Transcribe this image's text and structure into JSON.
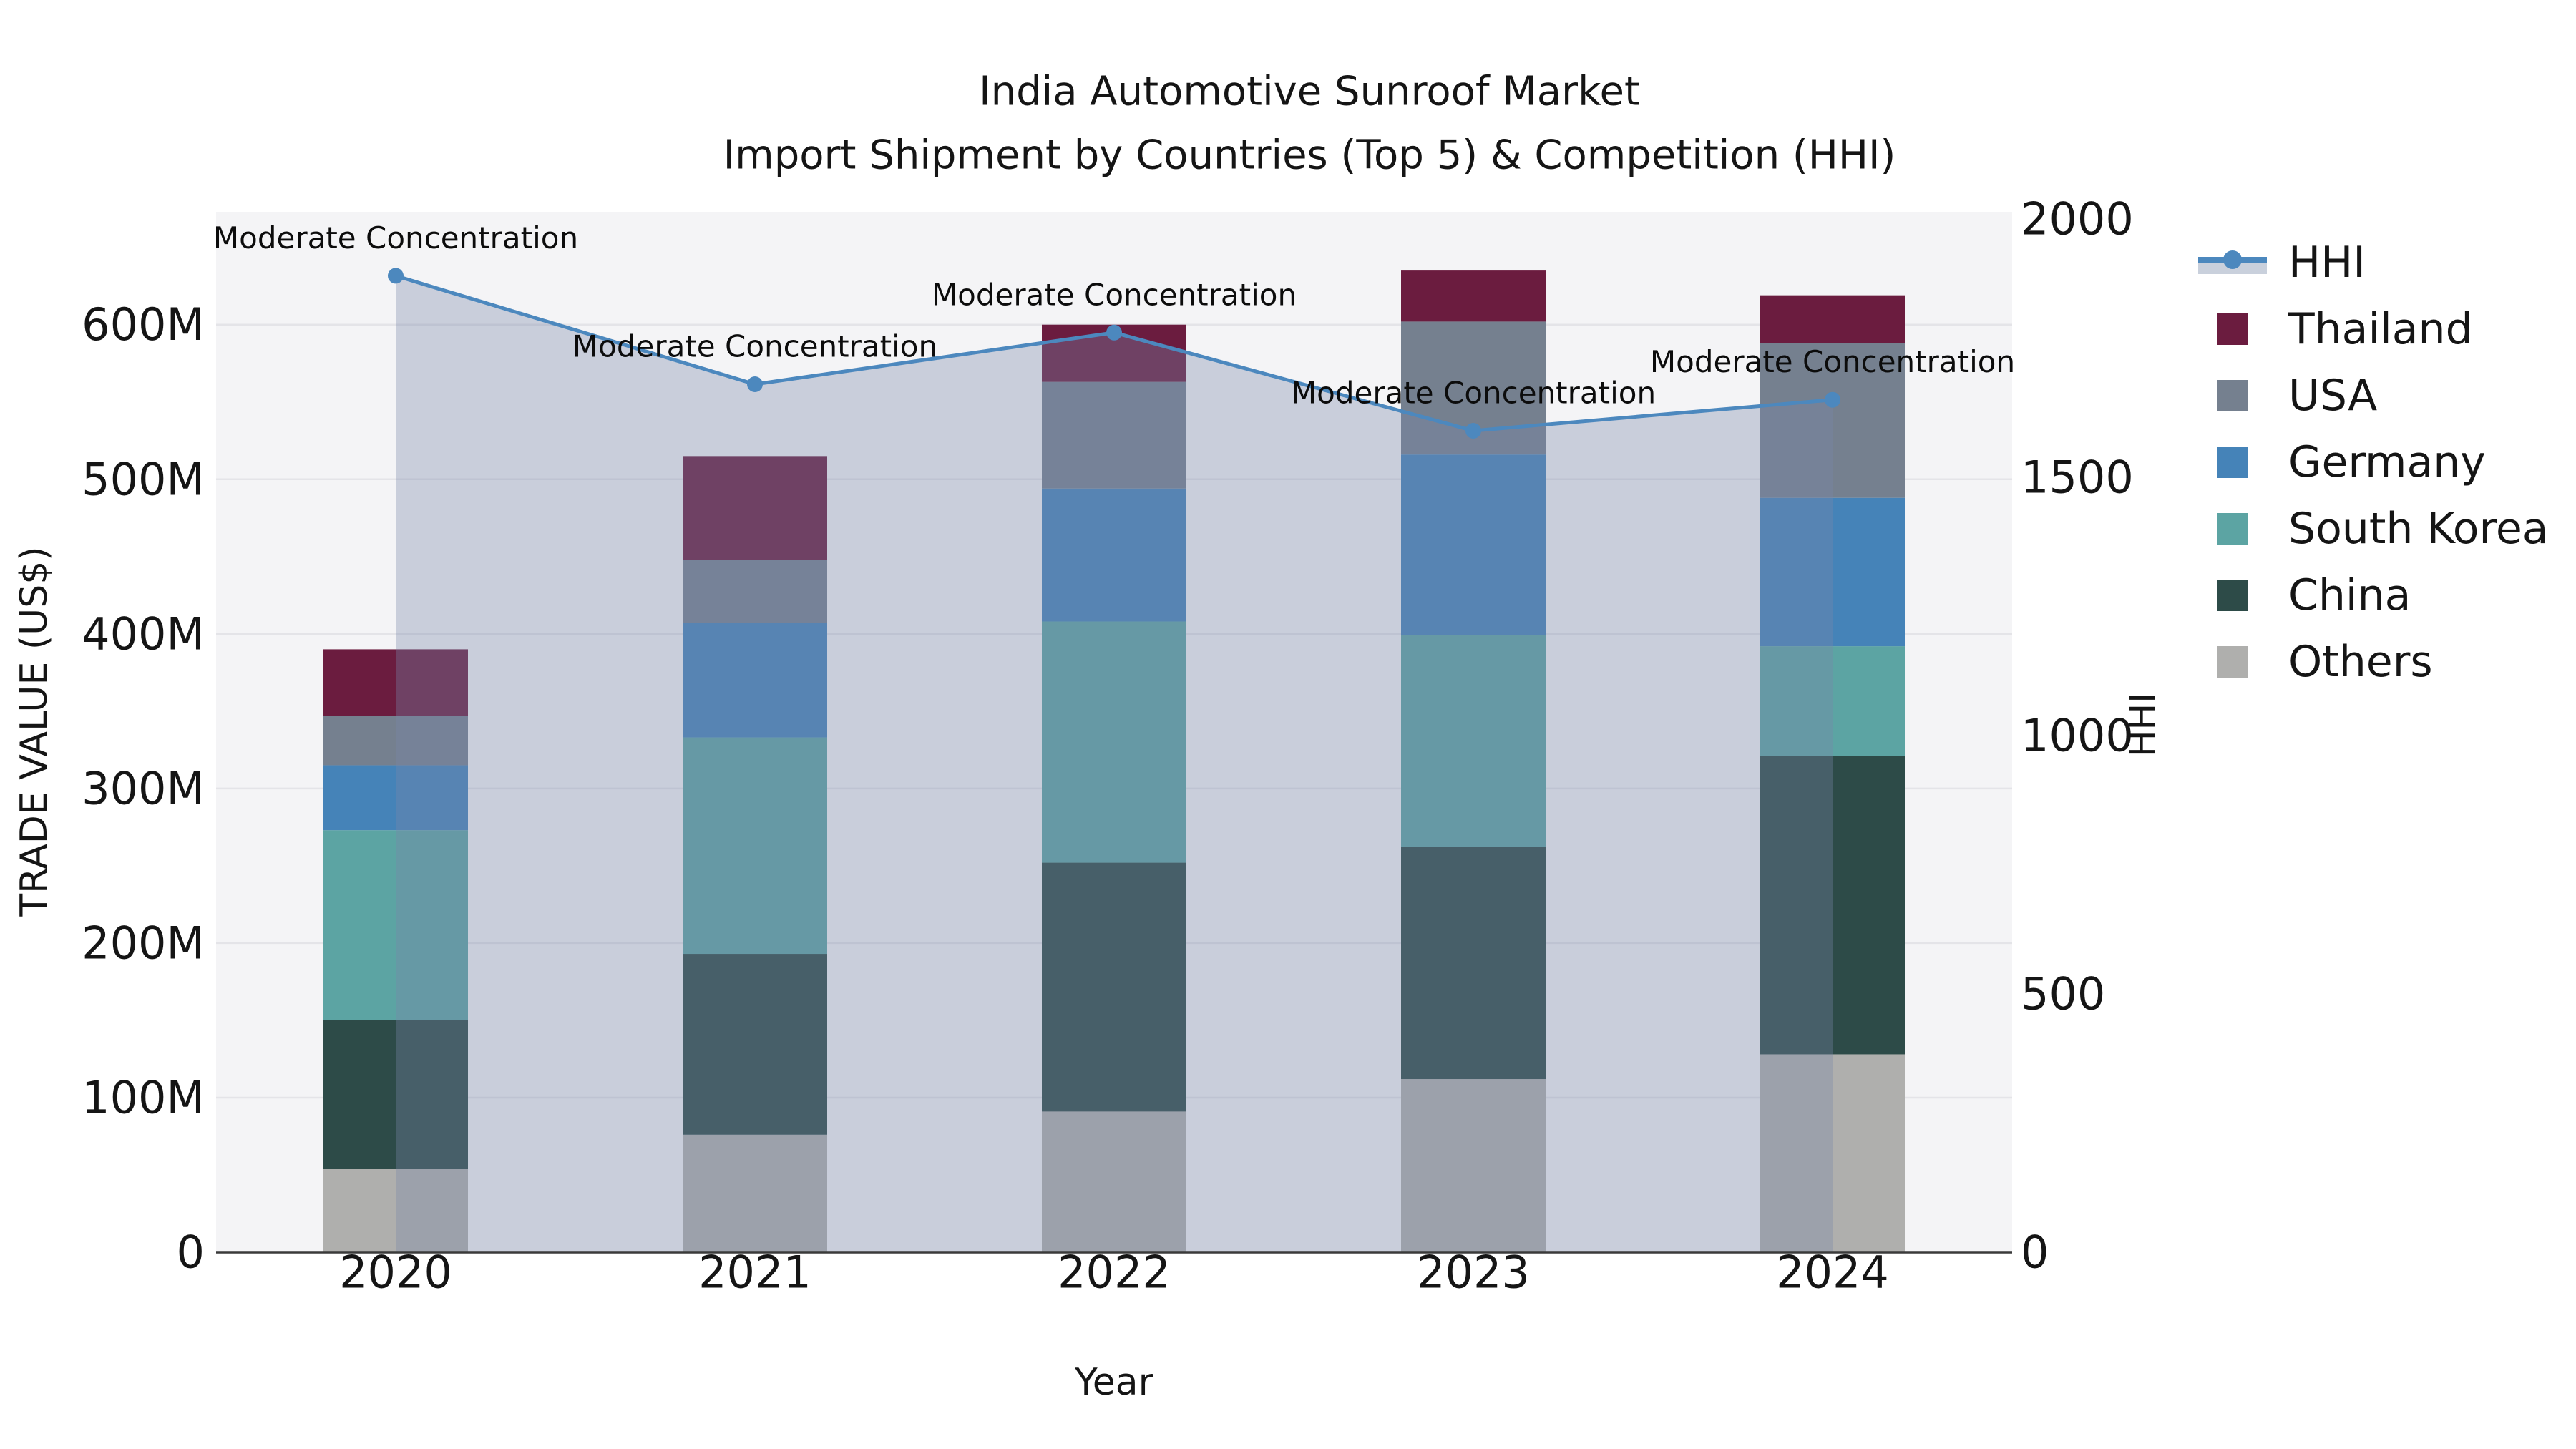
{
  "title": {
    "line1": "India Automotive Sunroof Market",
    "line2": "Import Shipment by Countries (Top 5) & Competition (HHI)"
  },
  "colors": {
    "plot_bg": "#F4F4F6",
    "grid": "#E4E4E8",
    "spine": "#3A3A3A",
    "text": "#151515",
    "hhi_line": "#4C88BE",
    "hhi_fill": "rgba(119,136,168,0.35)",
    "hhi_legend_band": "#C9D0DC",
    "thailand": "#6B1C3F",
    "usa": "#75808F",
    "germany": "#4583B8",
    "south_korea": "#5CA4A3",
    "china": "#2D4B48",
    "others": "#AFAFAD"
  },
  "legend": [
    {
      "label": "HHI",
      "type": "line",
      "color_key": "hhi_line"
    },
    {
      "label": "Thailand",
      "type": "patch",
      "color_key": "thailand"
    },
    {
      "label": "USA",
      "type": "patch",
      "color_key": "usa"
    },
    {
      "label": "Germany",
      "type": "patch",
      "color_key": "germany"
    },
    {
      "label": "South Korea",
      "type": "patch",
      "color_key": "south_korea"
    },
    {
      "label": "China",
      "type": "patch",
      "color_key": "china"
    },
    {
      "label": "Others",
      "type": "patch",
      "color_key": "others"
    }
  ],
  "chart_data": {
    "type": "bar",
    "subtype": "stacked-bar-with-line-overlay",
    "title": "India Automotive Sunroof Market — Import Shipment by Countries (Top 5) & Competition (HHI)",
    "categories": [
      "2020",
      "2021",
      "2022",
      "2023",
      "2024"
    ],
    "unit": "Million US$",
    "series": [
      {
        "name": "Others",
        "color_key": "others",
        "values": [
          54,
          76,
          91,
          112,
          128
        ]
      },
      {
        "name": "China",
        "color_key": "china",
        "values": [
          96,
          117,
          161,
          150,
          193
        ]
      },
      {
        "name": "South Korea",
        "color_key": "south_korea",
        "values": [
          123,
          140,
          156,
          137,
          71
        ]
      },
      {
        "name": "Germany",
        "color_key": "germany",
        "values": [
          42,
          74,
          86,
          117,
          96
        ]
      },
      {
        "name": "USA",
        "color_key": "usa",
        "values": [
          32,
          41,
          69,
          86,
          100
        ]
      },
      {
        "name": "Thailand",
        "color_key": "thailand",
        "values": [
          43,
          67,
          37,
          33,
          31
        ]
      }
    ],
    "bar_totals": [
      390,
      515,
      600,
      635,
      619
    ],
    "line": {
      "name": "HHI",
      "values": [
        1890,
        1680,
        1780,
        1590,
        1650
      ],
      "annotations": [
        "Moderate Concentration",
        "Moderate Concentration",
        "Moderate Concentration",
        "Moderate Concentration",
        "Moderate Concentration"
      ]
    },
    "x": {
      "label": "Year"
    },
    "y_left": {
      "label": "TRADE VALUE (US$)",
      "ticks": [
        0,
        100,
        200,
        300,
        400,
        500,
        600
      ],
      "tick_labels": [
        "0",
        "100M",
        "200M",
        "300M",
        "400M",
        "500M",
        "600M"
      ],
      "max": 673
    },
    "y_right": {
      "label": "HHI",
      "ticks": [
        0,
        500,
        1000,
        1500,
        2000
      ],
      "tick_labels": [
        "0",
        "500",
        "1000",
        "1500",
        "2000"
      ],
      "max": 2000
    },
    "grid": "horizontal",
    "legend_position": "right"
  }
}
